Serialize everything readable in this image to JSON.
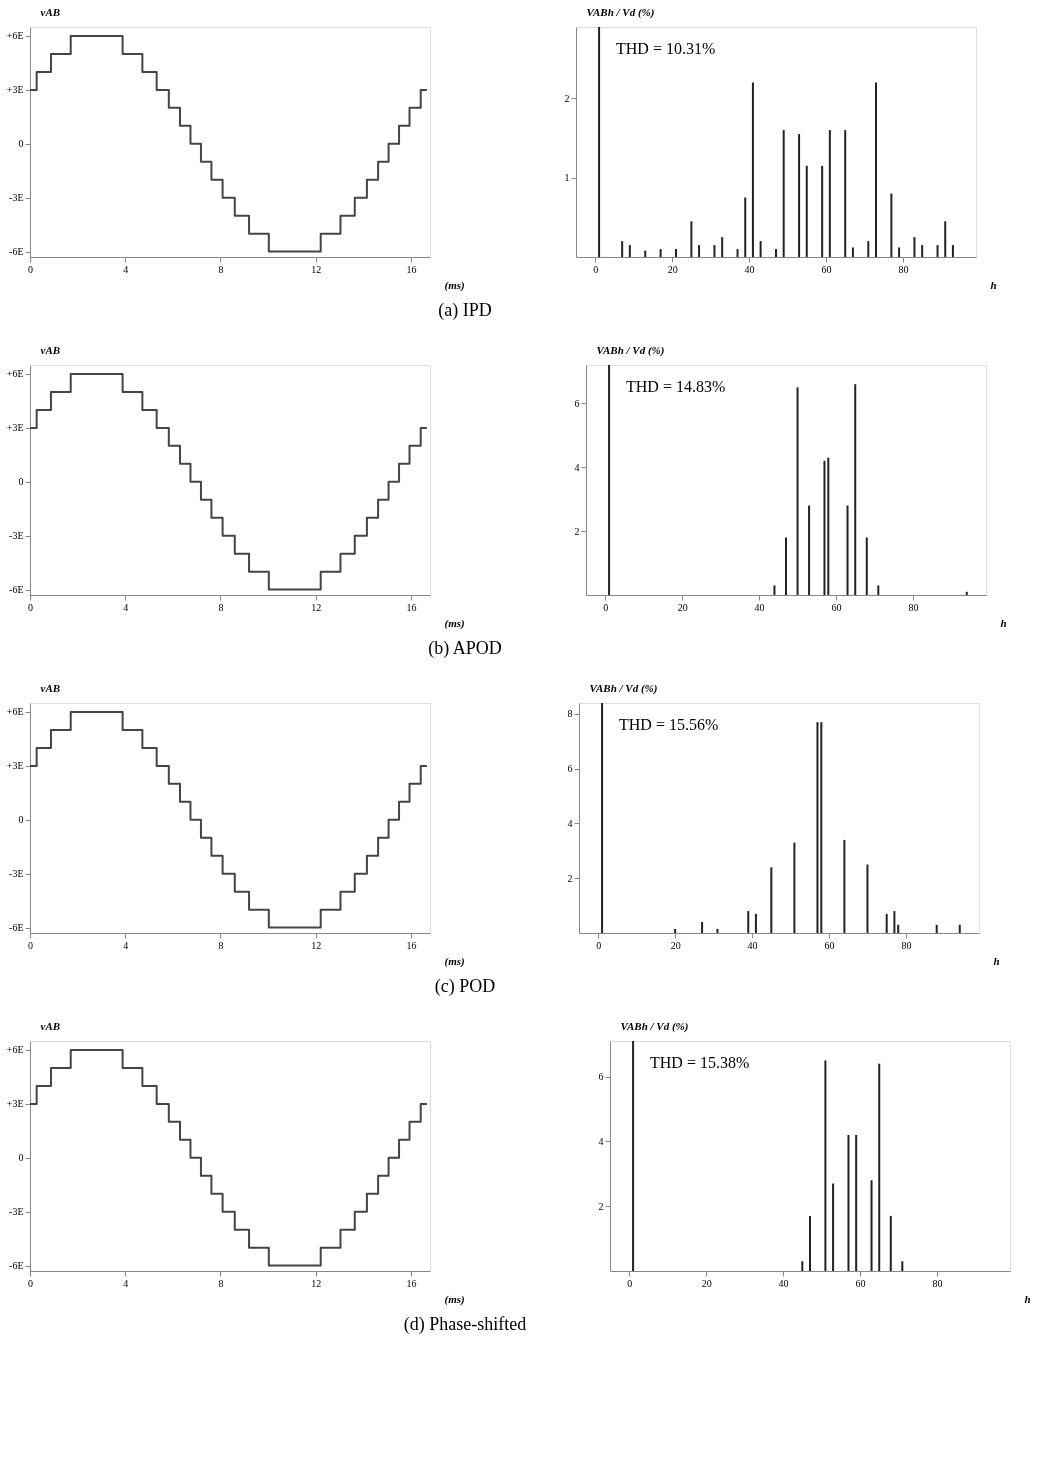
{
  "chart_data": [
    {
      "type": "step",
      "title": "(a) IPD",
      "ylabel": "vAB",
      "xlabel": "(ms)",
      "xlim": [
        0,
        16.8
      ],
      "xticks": [
        0,
        4,
        8,
        12,
        16
      ],
      "ylim": [
        -6.3,
        6.5
      ],
      "yticks": [
        {
          "value": 6,
          "label": "+6E"
        },
        {
          "value": 3,
          "label": "+3E"
        },
        0,
        {
          "value": -3,
          "label": "-3E"
        },
        {
          "value": -6,
          "label": "-6E"
        }
      ],
      "series": [
        {
          "color": "#444444",
          "x": [
            0,
            0.28,
            0.88,
            1.71,
            3.89,
            4.72,
            5.32,
            5.83,
            6.3,
            6.74,
            7.18,
            7.62,
            8.09,
            8.6,
            9.2,
            10.03,
            12.21,
            13.04,
            13.64,
            14.15,
            14.62,
            15.06,
            15.5,
            15.94,
            16.41,
            16.67
          ],
          "values": [
            3,
            4,
            5,
            6,
            5,
            4,
            3,
            2,
            1,
            0,
            -1,
            -2,
            -3,
            -4,
            -5,
            -6,
            -5,
            -4,
            -3,
            -2,
            -1,
            0,
            1,
            2,
            3,
            3
          ]
        }
      ]
    },
    {
      "type": "bar",
      "ylabel": "VABh / Vd (%)",
      "xlabel": "h",
      "annotations": [
        "THD = 10.31%"
      ],
      "xlim": [
        -5,
        99
      ],
      "xticks": [
        0,
        20,
        40,
        60,
        80
      ],
      "ylim": [
        0,
        2.9
      ],
      "yticks": [
        1,
        2
      ],
      "series": [
        {
          "color": "#222222",
          "x": [
            1,
            7,
            9,
            13,
            17,
            21,
            25,
            27,
            31,
            33,
            37,
            39,
            41,
            43,
            47,
            49,
            53,
            55,
            59,
            61,
            65,
            67,
            71,
            73,
            77,
            79,
            83,
            85,
            89,
            91,
            93
          ],
          "values": [
            2.9,
            0.2,
            0.15,
            0.08,
            0.1,
            0.1,
            0.45,
            0.15,
            0.15,
            0.25,
            0.1,
            0.75,
            2.2,
            0.2,
            0.1,
            1.6,
            1.55,
            1.15,
            1.15,
            1.6,
            1.6,
            0.12,
            0.2,
            2.2,
            0.8,
            0.12,
            0.25,
            0.15,
            0.15,
            0.45,
            0.15
          ]
        }
      ]
    },
    {
      "type": "step",
      "title": "(b) APOD",
      "ylabel": "vAB",
      "xlabel": "(ms)",
      "xlim": [
        0,
        16.8
      ],
      "xticks": [
        0,
        4,
        8,
        12,
        16
      ],
      "ylim": [
        -6.3,
        6.5
      ],
      "yticks": [
        {
          "value": 6,
          "label": "+6E"
        },
        {
          "value": 3,
          "label": "+3E"
        },
        0,
        {
          "value": -3,
          "label": "-3E"
        },
        {
          "value": -6,
          "label": "-6E"
        }
      ],
      "series": [
        {
          "color": "#444444",
          "x": [
            0,
            0.28,
            0.88,
            1.71,
            3.89,
            4.72,
            5.32,
            5.83,
            6.3,
            6.74,
            7.18,
            7.62,
            8.09,
            8.6,
            9.2,
            10.03,
            12.21,
            13.04,
            13.64,
            14.15,
            14.62,
            15.06,
            15.5,
            15.94,
            16.41,
            16.67
          ],
          "values": [
            3,
            4,
            5,
            6,
            5,
            4,
            3,
            2,
            1,
            0,
            -1,
            -2,
            -3,
            -4,
            -5,
            -6,
            -5,
            -4,
            -3,
            -2,
            -1,
            0,
            1,
            2,
            3,
            3
          ]
        }
      ]
    },
    {
      "type": "bar",
      "ylabel": "VABh / Vd (%)",
      "xlabel": "h",
      "annotations": [
        "THD = 14.83%"
      ],
      "xlim": [
        -5,
        99
      ],
      "xticks": [
        0,
        20,
        40,
        60,
        80
      ],
      "ylim": [
        0,
        7.2
      ],
      "yticks": [
        2,
        4,
        6
      ],
      "series": [
        {
          "color": "#222222",
          "x": [
            1,
            44,
            47,
            50,
            53,
            57,
            58,
            63,
            65,
            68,
            71,
            94
          ],
          "values": [
            7.2,
            0.3,
            1.8,
            6.5,
            2.8,
            4.2,
            4.3,
            2.8,
            6.6,
            1.8,
            0.3,
            0.1
          ]
        }
      ]
    },
    {
      "type": "step",
      "title": "(c) POD",
      "ylabel": "vAB",
      "xlabel": "(ms)",
      "xlim": [
        0,
        16.8
      ],
      "xticks": [
        0,
        4,
        8,
        12,
        16
      ],
      "ylim": [
        -6.3,
        6.5
      ],
      "yticks": [
        {
          "value": 6,
          "label": "+6E"
        },
        {
          "value": 3,
          "label": "+3E"
        },
        0,
        {
          "value": -3,
          "label": "-3E"
        },
        {
          "value": -6,
          "label": "-6E"
        }
      ],
      "series": [
        {
          "color": "#444444",
          "x": [
            0,
            0.28,
            0.88,
            1.71,
            3.89,
            4.72,
            5.32,
            5.83,
            6.3,
            6.74,
            7.18,
            7.62,
            8.09,
            8.6,
            9.2,
            10.03,
            12.21,
            13.04,
            13.64,
            14.15,
            14.62,
            15.06,
            15.5,
            15.94,
            16.41,
            16.67
          ],
          "values": [
            3,
            4,
            5,
            6,
            5,
            4,
            3,
            2,
            1,
            0,
            -1,
            -2,
            -3,
            -4,
            -5,
            -6,
            -5,
            -4,
            -3,
            -2,
            -1,
            0,
            1,
            2,
            3,
            3
          ]
        }
      ]
    },
    {
      "type": "bar",
      "ylabel": "VABh / Vd (%)",
      "xlabel": "h",
      "annotations": [
        "THD = 15.56%"
      ],
      "xlim": [
        -5,
        99
      ],
      "xticks": [
        0,
        20,
        40,
        60,
        80
      ],
      "ylim": [
        0,
        8.4
      ],
      "yticks": [
        2,
        4,
        6,
        8
      ],
      "series": [
        {
          "color": "#222222",
          "x": [
            1,
            20,
            27,
            31,
            39,
            41,
            45,
            51,
            57,
            58,
            64,
            70,
            75,
            77,
            78,
            88,
            94
          ],
          "values": [
            8.4,
            0.15,
            0.4,
            0.15,
            0.8,
            0.7,
            2.4,
            3.3,
            7.7,
            7.7,
            3.4,
            2.5,
            0.7,
            0.8,
            0.3,
            0.3,
            0.3
          ]
        }
      ]
    },
    {
      "type": "step",
      "title": "(d) Phase-shifted",
      "ylabel": "vAB",
      "xlabel": "(ms)",
      "xlim": [
        0,
        16.8
      ],
      "xticks": [
        0,
        4,
        8,
        12,
        16
      ],
      "ylim": [
        -6.3,
        6.5
      ],
      "yticks": [
        {
          "value": 6,
          "label": "+6E"
        },
        {
          "value": 3,
          "label": "+3E"
        },
        0,
        {
          "value": -3,
          "label": "-3E"
        },
        {
          "value": -6,
          "label": "-6E"
        }
      ],
      "series": [
        {
          "color": "#444444",
          "x": [
            0,
            0.28,
            0.88,
            1.71,
            3.89,
            4.72,
            5.32,
            5.83,
            6.3,
            6.74,
            7.18,
            7.62,
            8.09,
            8.6,
            9.2,
            10.03,
            12.21,
            13.04,
            13.64,
            14.15,
            14.62,
            15.06,
            15.5,
            15.94,
            16.41,
            16.67
          ],
          "values": [
            3,
            4,
            5,
            6,
            5,
            4,
            3,
            2,
            1,
            0,
            -1,
            -2,
            -3,
            -4,
            -5,
            -6,
            -5,
            -4,
            -3,
            -2,
            -1,
            0,
            1,
            2,
            3,
            3
          ]
        }
      ]
    },
    {
      "type": "bar",
      "ylabel": "VABh / Vd (%)",
      "xlabel": "h",
      "annotations": [
        "THD = 15.38%"
      ],
      "xlim": [
        -5,
        99
      ],
      "xticks": [
        0,
        20,
        40,
        60,
        80
      ],
      "ylim": [
        0,
        7.1
      ],
      "yticks": [
        2,
        4,
        6
      ],
      "series": [
        {
          "color": "#222222",
          "x": [
            1,
            45,
            47,
            51,
            53,
            57,
            59,
            63,
            65,
            68,
            71
          ],
          "values": [
            7.1,
            0.3,
            1.7,
            6.5,
            2.7,
            4.2,
            4.2,
            2.8,
            6.4,
            1.7,
            0.3
          ]
        }
      ]
    }
  ]
}
